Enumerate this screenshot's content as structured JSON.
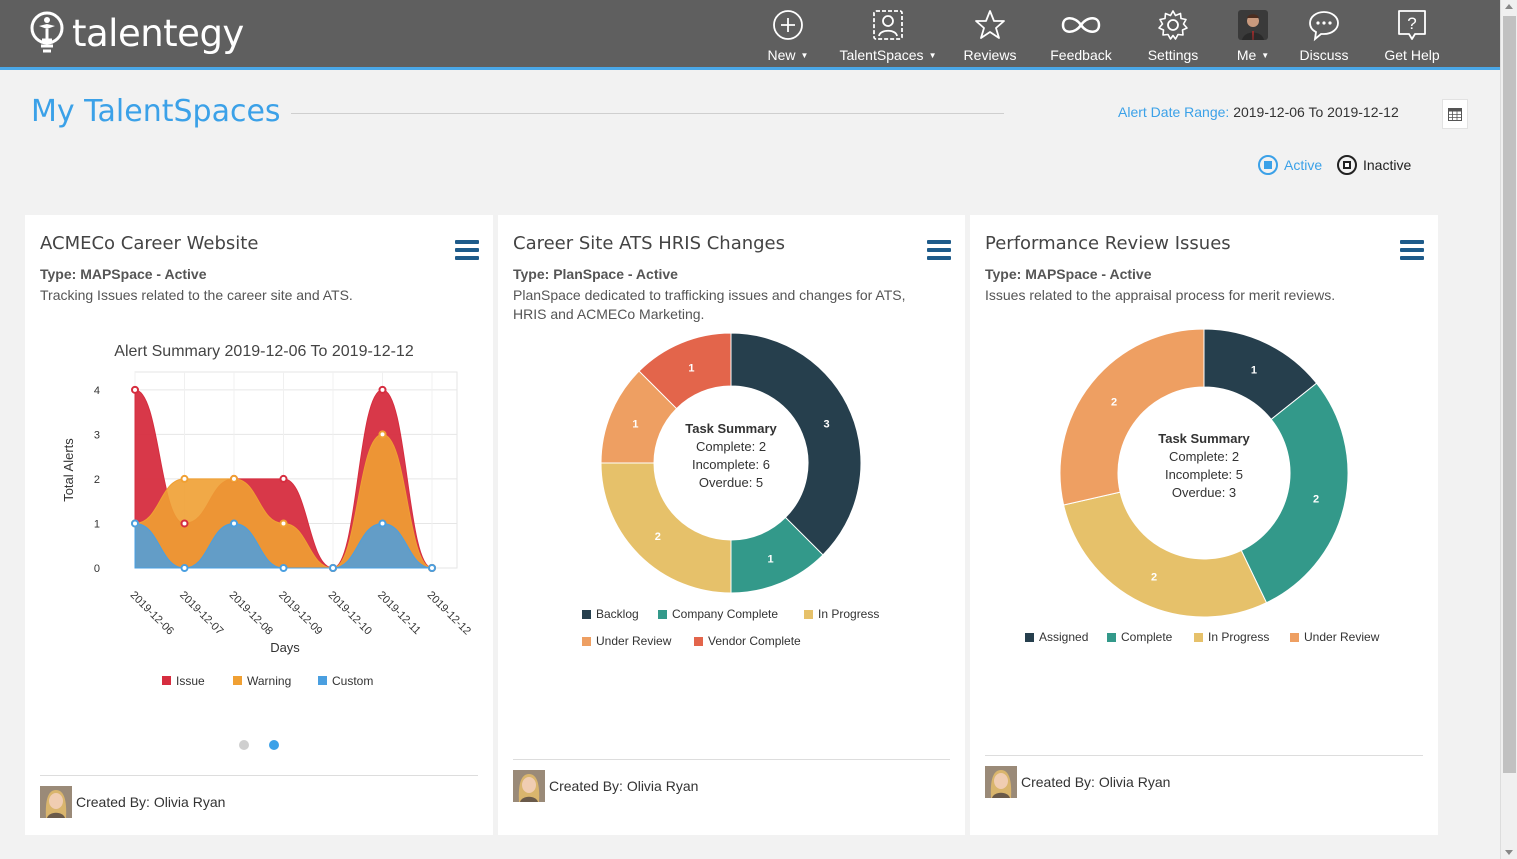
{
  "app": {
    "logo_text": "talentegy",
    "nav": [
      {
        "key": "new",
        "label": "New",
        "icon": "plus-circle-icon",
        "dropdown": true
      },
      {
        "key": "talentspaces",
        "label": "TalentSpaces",
        "icon": "user-badge-icon",
        "dropdown": true
      },
      {
        "key": "reviews",
        "label": "Reviews",
        "icon": "star-icon",
        "dropdown": false
      },
      {
        "key": "feedback",
        "label": "Feedback",
        "icon": "infinity-icon",
        "dropdown": false
      },
      {
        "key": "settings",
        "label": "Settings",
        "icon": "gear-icon",
        "dropdown": false
      },
      {
        "key": "me",
        "label": "Me",
        "icon": "user-photo-icon",
        "dropdown": true
      },
      {
        "key": "discuss",
        "label": "Discuss",
        "icon": "chat-bubble-icon",
        "dropdown": false
      },
      {
        "key": "help",
        "label": "Get Help",
        "icon": "question-box-icon",
        "dropdown": false
      }
    ]
  },
  "header": {
    "title": "My TalentSpaces",
    "alert_range_label": "Alert Date Range:",
    "alert_range_value": "2019-12-06 To 2019-12-12",
    "filter_active": "Active",
    "filter_inactive": "Inactive"
  },
  "colors": {
    "accent": "#3ba1e8",
    "issue": "#d62d3f",
    "warning": "#f0a033",
    "custom": "#4a9fe0",
    "backlog": "#263f4d",
    "complete": "#33998a",
    "in_progress": "#e6c16a",
    "under_review": "#ee9f62",
    "vendor_complete": "#e3654b"
  },
  "cards": [
    {
      "title": "ACMECo Career Website",
      "type": "Type: MAPSpace - Active",
      "description": "Tracking Issues related to the career site and ATS.",
      "created_by": "Created By: Olivia Ryan"
    },
    {
      "title": "Career Site ATS HRIS Changes",
      "type": "Type: PlanSpace - Active",
      "description": "PlanSpace dedicated to trafficking issues and changes for ATS, HRIS and ACMECo Marketing.",
      "created_by": "Created By: Olivia Ryan"
    },
    {
      "title": "Performance Review Issues",
      "type": "Type: MAPSpace - Active",
      "description": "Issues related to the appraisal process for merit reviews.",
      "created_by": "Created By: Olivia Ryan"
    }
  ],
  "chart_data": [
    {
      "type": "area",
      "title": "Alert Summary 2019-12-06 To 2019-12-12",
      "xlabel": "Days",
      "ylabel": "Total Alerts",
      "ylim": [
        0,
        4.4
      ],
      "y_ticks": [
        0,
        1,
        2,
        3,
        4
      ],
      "categories": [
        "2019-12-06",
        "2019-12-07",
        "2019-12-08",
        "2019-12-09",
        "2019-12-10",
        "2019-12-11",
        "2019-12-12"
      ],
      "stacked": false,
      "grid": true,
      "legend": "bottom",
      "series": [
        {
          "name": "Issue",
          "color": "#d62d3f",
          "values": [
            4,
            1,
            2,
            2,
            0,
            4,
            0
          ]
        },
        {
          "name": "Warning",
          "color": "#f0a033",
          "values": [
            1,
            2,
            2,
            1,
            0,
            3,
            0
          ]
        },
        {
          "name": "Custom",
          "color": "#4a9fe0",
          "values": [
            1,
            0,
            1,
            0,
            0,
            1,
            0
          ]
        }
      ]
    },
    {
      "type": "pie",
      "donut": true,
      "center_title": "Task Summary",
      "center_lines": [
        "Complete: 2",
        "Incomplete: 6",
        "Overdue: 5"
      ],
      "legend": "bottom",
      "slices": [
        {
          "label": "Backlog",
          "value": 3,
          "color": "#263f4d"
        },
        {
          "label": "Company Complete",
          "value": 1,
          "color": "#33998a"
        },
        {
          "label": "In Progress",
          "value": 2,
          "color": "#e6c16a"
        },
        {
          "label": "Under Review",
          "value": 1,
          "color": "#ee9f62"
        },
        {
          "label": "Vendor Complete",
          "value": 1,
          "color": "#e3654b"
        }
      ]
    },
    {
      "type": "pie",
      "donut": true,
      "center_title": "Task Summary",
      "center_lines": [
        "Complete: 2",
        "Incomplete: 5",
        "Overdue: 3"
      ],
      "legend": "bottom",
      "slices": [
        {
          "label": "Assigned",
          "value": 1,
          "color": "#263f4d"
        },
        {
          "label": "Complete",
          "value": 2,
          "color": "#33998a"
        },
        {
          "label": "In Progress",
          "value": 2,
          "color": "#e6c16a"
        },
        {
          "label": "Under Review",
          "value": 2,
          "color": "#ee9f62"
        }
      ]
    }
  ]
}
